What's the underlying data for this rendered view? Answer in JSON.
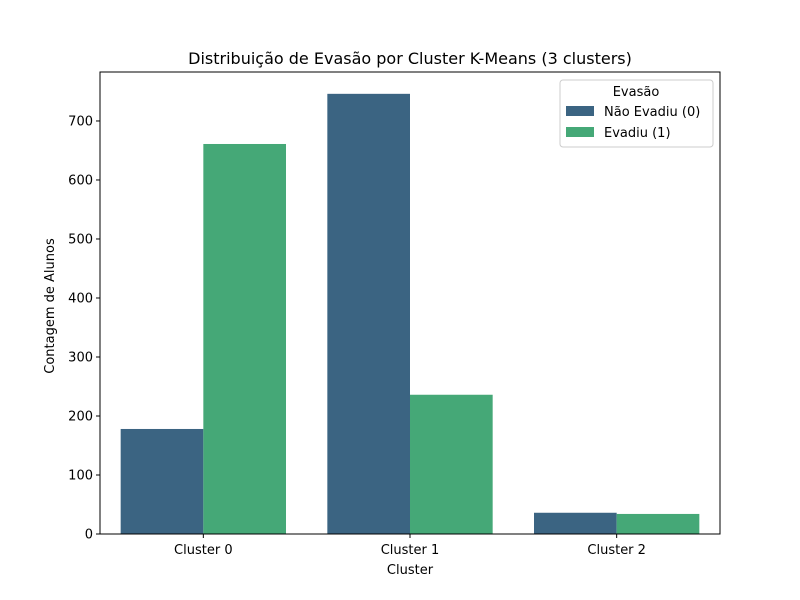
{
  "chart_data": {
    "type": "bar",
    "title": "Distribuição de Evasão por Cluster K-Means (3 clusters)",
    "xlabel": "Cluster",
    "ylabel": "Contagem de Alunos",
    "categories": [
      "Cluster 0",
      "Cluster 1",
      "Cluster 2"
    ],
    "series": [
      {
        "name": "Não Evadiu (0)",
        "color": "#3b6482",
        "values": [
          178,
          746,
          36
        ]
      },
      {
        "name": "Evadiu (1)",
        "color": "#45a877",
        "values": [
          661,
          236,
          34
        ]
      }
    ],
    "ylim": [
      0,
      783
    ],
    "yticks": [
      0,
      100,
      200,
      300,
      400,
      500,
      600,
      700
    ],
    "grid": false,
    "legend": {
      "title": "Evasão",
      "position": "top-right"
    }
  }
}
